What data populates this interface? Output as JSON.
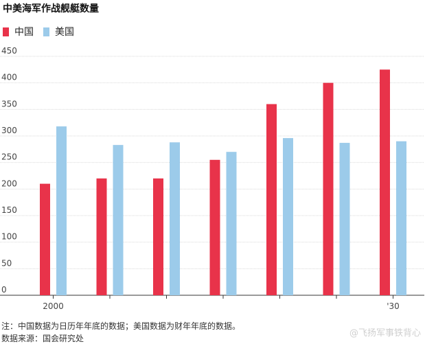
{
  "header": {
    "title": "中美海军作战舰艇数量"
  },
  "chart_data": {
    "type": "bar",
    "title": "中美海军作战舰艇数量",
    "categories": [
      "2000",
      "",
      "",
      "",
      "",
      "",
      "'30"
    ],
    "series": [
      {
        "name": "中国",
        "color": "#e8334a",
        "values": [
          210,
          220,
          220,
          255,
          360,
          400,
          425
        ]
      },
      {
        "name": "美国",
        "color": "#9ccbea",
        "values": [
          318,
          283,
          288,
          270,
          296,
          287,
          290
        ]
      }
    ],
    "ylim": [
      0,
      450
    ],
    "yticks": [
      0,
      50,
      100,
      150,
      200,
      250,
      300,
      350,
      400,
      450
    ],
    "grid": true,
    "legend_position": "top-left",
    "xlabel": "",
    "ylabel": ""
  },
  "footer": {
    "note": "注：中国数据为日历年年底的数据；美国数据为财年年底的数据。",
    "source": "数据来源：国会研究处"
  },
  "watermark": "@飞扬军事铁背心"
}
